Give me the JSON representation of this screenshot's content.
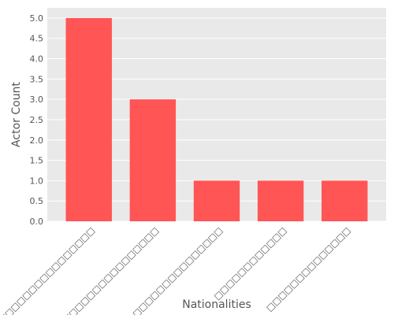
{
  "chart_data": {
    "type": "bar",
    "title": "",
    "xlabel": "Nationalities",
    "ylabel": "Actor Count",
    "categories": [
      "□□□□□□□□□□□□□□□□",
      "□□□□□□□□□□□□□□□□",
      "□□□□□□□□□□□□□□□",
      "□□□□□□□□□□□□",
      "□□□□□□□□□□□□□□"
    ],
    "values": [
      5,
      3,
      1,
      1,
      1
    ],
    "ylim": [
      0,
      5.25
    ],
    "yticks": [
      0.0,
      0.5,
      1.0,
      1.5,
      2.0,
      2.5,
      3.0,
      3.5,
      4.0,
      4.5,
      5.0
    ],
    "ytick_labels": [
      "0.0",
      "0.5",
      "1.0",
      "1.5",
      "2.0",
      "2.5",
      "3.0",
      "3.5",
      "4.0",
      "4.5",
      "5.0"
    ],
    "grid": true,
    "bar_color": "#ff5555",
    "plot_background": "#e9e9e9",
    "grid_color": "#ffffff",
    "text_color": "#555555"
  }
}
